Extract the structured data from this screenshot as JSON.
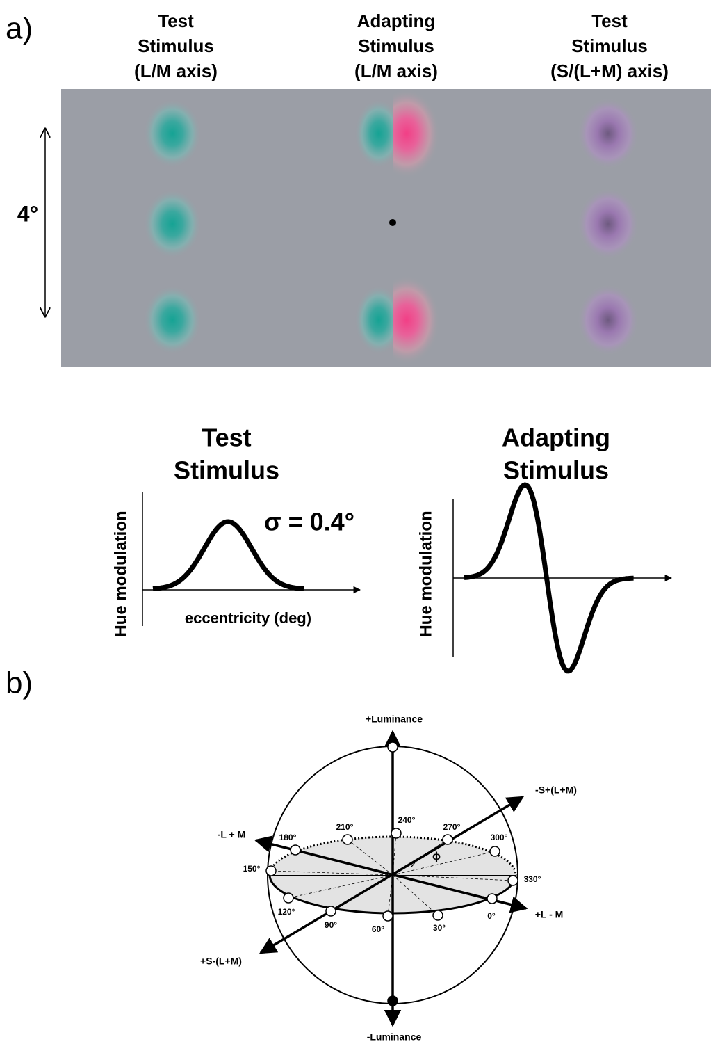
{
  "panel_a": {
    "label": "a)",
    "columns": [
      {
        "lines": [
          "Test",
          "Stimulus",
          "(L/M axis)"
        ]
      },
      {
        "lines": [
          "Adapting",
          "Stimulus",
          "(L/M axis)"
        ]
      },
      {
        "lines": [
          "Test",
          "Stimulus",
          "(S/(L+M) axis)"
        ]
      }
    ],
    "scale_label": "4°",
    "test_profile": {
      "title_lines": [
        "Test",
        "Stimulus"
      ],
      "y_label": "Hue modulation",
      "x_label": "eccentricity (deg)",
      "sigma_label": "σ = 0.4°"
    },
    "adapting_profile": {
      "title_lines": [
        "Adapting",
        "Stimulus"
      ],
      "y_label": "Hue modulation"
    }
  },
  "panel_b": {
    "label": "b)",
    "axis_labels": {
      "plus_luminance": "+Luminance",
      "minus_luminance": "-Luminance",
      "minus_s": "-S+(L+M)",
      "plus_s": "+S-(L+M)",
      "minus_l": "-L + M",
      "plus_l": "+L - M"
    },
    "phi": "ϕ",
    "angles": [
      "0°",
      "30°",
      "60°",
      "90°",
      "120°",
      "150°",
      "180°",
      "210°",
      "240°",
      "270°",
      "300°",
      "330°"
    ]
  }
}
